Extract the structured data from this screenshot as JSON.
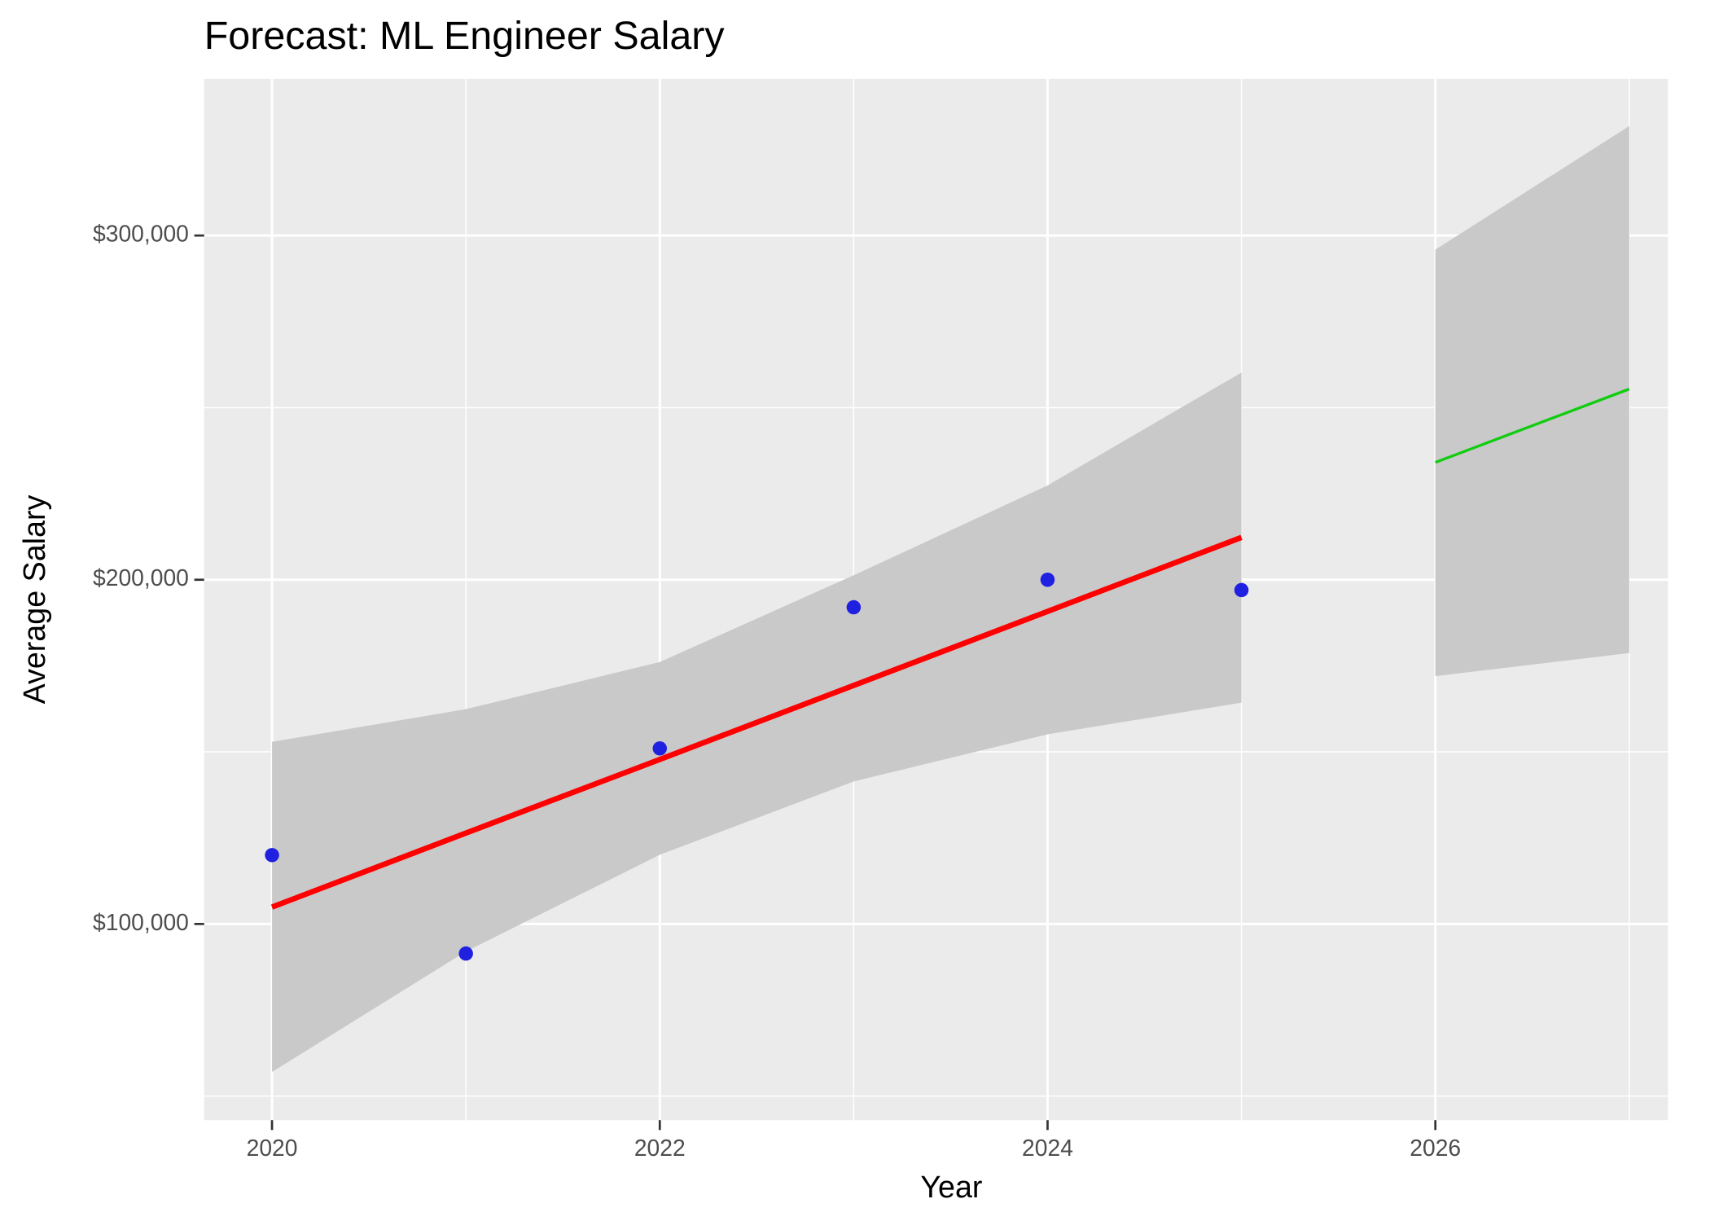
{
  "chart_data": {
    "type": "line",
    "title": "Forecast: ML Engineer Salary",
    "x_label": "Year",
    "y_label": "Average Salary",
    "xlim": [
      2019.65,
      2027.2
    ],
    "ylim": [
      43000,
      345500
    ],
    "xticks": [
      2020,
      2022,
      2024,
      2026
    ],
    "xminor": [
      2021,
      2023,
      2025,
      2027
    ],
    "yticks": [
      {
        "value": 100000,
        "label": "$100,000"
      },
      {
        "value": 200000,
        "label": "$200,000"
      },
      {
        "value": 300000,
        "label": "$300,000"
      }
    ],
    "yminor": [
      50000,
      150000,
      250000
    ],
    "grid": true,
    "background": "#ebebeb",
    "series": [
      {
        "type": "scatter",
        "color": "#2020e0",
        "x": [
          2020,
          2021,
          2022,
          2023,
          2024,
          2025
        ],
        "values": [
          120000,
          91400,
          151000,
          192000,
          200000,
          197000
        ]
      },
      {
        "type": "line",
        "color": "#ff0000",
        "width": 5,
        "band_color": "#c9c9c9",
        "x": [
          2020,
          2021,
          2022,
          2023,
          2024,
          2025
        ],
        "values": [
          104900,
          126400,
          147800,
          169300,
          190800,
          212300
        ],
        "lower": [
          57000,
          92000,
          120100,
          141400,
          155100,
          164300
        ],
        "upper": [
          152900,
          162400,
          176100,
          201300,
          227400,
          260200
        ]
      },
      {
        "type": "line",
        "color": "#11cc11",
        "width": 2.5,
        "band_color": "#c9c9c9",
        "x": [
          2026,
          2027
        ],
        "values": [
          234100,
          255400
        ],
        "lower": [
          172000,
          178700
        ],
        "upper": [
          295900,
          331800
        ]
      }
    ]
  }
}
